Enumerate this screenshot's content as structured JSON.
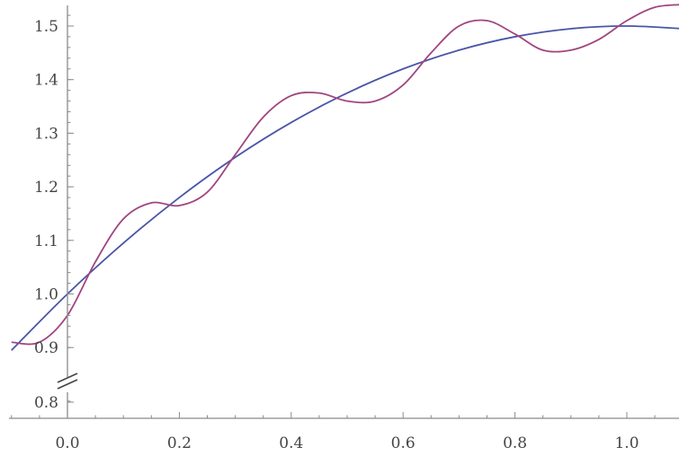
{
  "chart_data": {
    "type": "line",
    "title": "",
    "xlabel": "",
    "ylabel": "",
    "xlim": [
      -0.1,
      1.1
    ],
    "ylim": [
      0.78,
      1.545
    ],
    "x_ticks": [
      0.0,
      0.2,
      0.4,
      0.6,
      0.8,
      1.0
    ],
    "x_tick_labels": [
      "0.0",
      "0.2",
      "0.4",
      "0.6",
      "0.8",
      "1.0"
    ],
    "y_ticks": [
      0.8,
      0.9,
      1.0,
      1.1,
      1.2,
      1.3,
      1.4,
      1.5
    ],
    "y_tick_labels": [
      "0.8",
      "0.9",
      "1.0",
      "1.1",
      "1.2",
      "1.3",
      "1.4",
      "1.5"
    ],
    "y_axis_break": true,
    "grid": false,
    "legend": "none",
    "series": [
      {
        "color": "#4a55a8",
        "x": [
          -0.1,
          0.0,
          0.1,
          0.2,
          0.3,
          0.4,
          0.5,
          0.6,
          0.7,
          0.8,
          0.9,
          1.0,
          1.1
        ],
        "y": [
          0.895,
          1.0,
          1.095,
          1.18,
          1.255,
          1.32,
          1.375,
          1.42,
          1.455,
          1.48,
          1.495,
          1.5,
          1.495
        ]
      },
      {
        "color": "#a0457f",
        "x": [
          -0.1,
          -0.05,
          0.0,
          0.05,
          0.1,
          0.15,
          0.2,
          0.25,
          0.3,
          0.35,
          0.4,
          0.45,
          0.5,
          0.55,
          0.6,
          0.65,
          0.7,
          0.75,
          0.8,
          0.85,
          0.9,
          0.95,
          1.0,
          1.05,
          1.1
        ],
        "y": [
          0.91,
          0.91,
          0.96,
          1.06,
          1.14,
          1.17,
          1.165,
          1.19,
          1.26,
          1.33,
          1.37,
          1.375,
          1.36,
          1.36,
          1.39,
          1.45,
          1.5,
          1.51,
          1.485,
          1.455,
          1.455,
          1.475,
          1.51,
          1.535,
          1.54
        ]
      }
    ]
  }
}
